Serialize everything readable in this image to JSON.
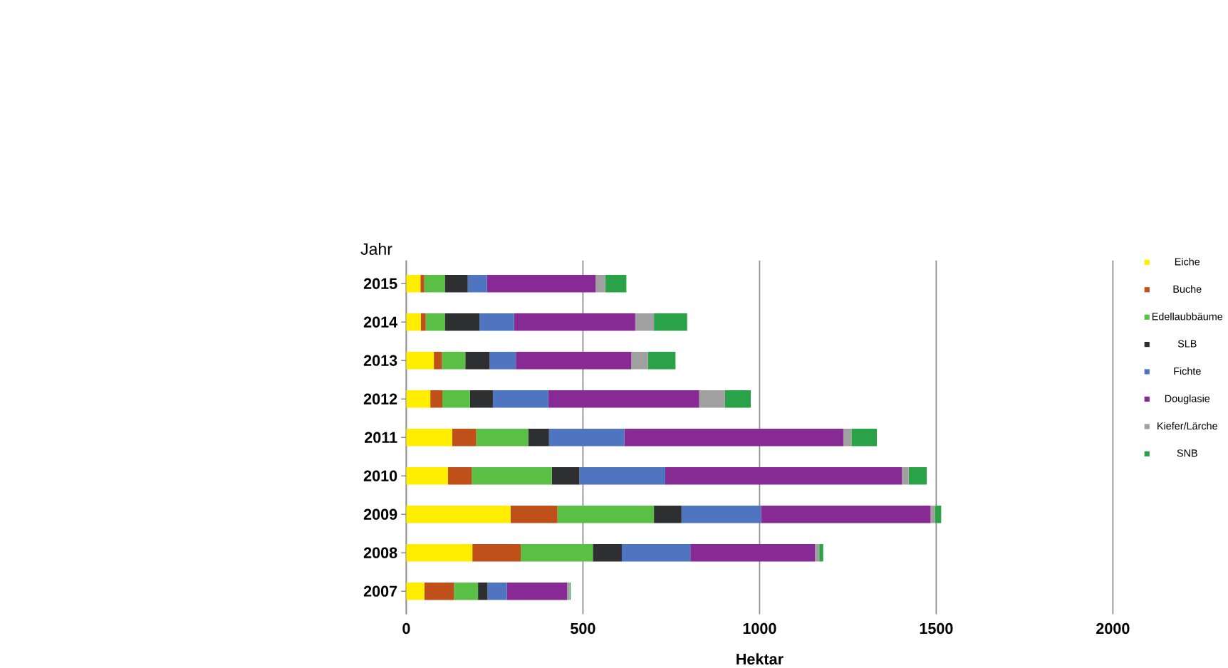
{
  "chart_data": {
    "type": "bar",
    "orientation": "horizontal",
    "stacked": true,
    "ylabel": "Jahr",
    "xlabel": "Hektar",
    "categories": [
      "2015",
      "2014",
      "2013",
      "2012",
      "2011",
      "2010",
      "2009",
      "2008",
      "2007"
    ],
    "series": [
      {
        "name": "Eiche",
        "color": "#ffee00",
        "values": [
          40,
          41,
          78,
          68,
          130,
          118,
          295,
          187,
          51
        ]
      },
      {
        "name": "Buche",
        "color": "#c0501a",
        "values": [
          11,
          14,
          23,
          34,
          68,
          67,
          133,
          137,
          84
        ]
      },
      {
        "name": "Edellaubbäume",
        "color": "#5abf45",
        "values": [
          58,
          54,
          66,
          78,
          147,
          227,
          273,
          204,
          68
        ]
      },
      {
        "name": "SLB",
        "color": "#2d2f30",
        "values": [
          65,
          98,
          69,
          65,
          59,
          78,
          78,
          82,
          27
        ]
      },
      {
        "name": "Fichte",
        "color": "#4f74c0",
        "values": [
          54,
          98,
          74,
          157,
          213,
          243,
          225,
          194,
          55
        ]
      },
      {
        "name": "Douglasie",
        "color": "#872a93",
        "values": [
          308,
          343,
          327,
          427,
          620,
          670,
          480,
          353,
          170
        ]
      },
      {
        "name": "Kiefer/Lärche",
        "color": "#a0a0a0",
        "values": [
          27,
          53,
          47,
          73,
          23,
          19,
          12,
          12,
          7
        ]
      },
      {
        "name": "SNB",
        "color": "#2aa348",
        "values": [
          60,
          94,
          78,
          73,
          72,
          51,
          18,
          11,
          3
        ]
      }
    ],
    "xlim": [
      0,
      2000
    ],
    "xticks": [
      0,
      500,
      1000,
      1500,
      2000
    ],
    "grid": "x",
    "legend": "right"
  }
}
